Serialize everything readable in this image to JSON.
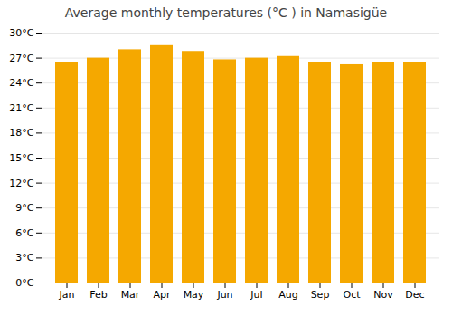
{
  "chart_data": {
    "type": "bar",
    "title": "Average monthly temperatures (°C ) in Namasigüe",
    "categories": [
      "Jan",
      "Feb",
      "Mar",
      "Apr",
      "May",
      "Jun",
      "Jul",
      "Aug",
      "Sep",
      "Oct",
      "Nov",
      "Dec"
    ],
    "values": [
      26.5,
      27.0,
      28.0,
      28.5,
      27.8,
      26.8,
      27.0,
      27.2,
      26.5,
      26.2,
      26.5,
      26.5
    ],
    "color": "#F5A800",
    "ylim": [
      0,
      30
    ],
    "yticks": [
      {
        "value": 0,
        "label": "0°C"
      },
      {
        "value": 3,
        "label": "3°C"
      },
      {
        "value": 6,
        "label": "6°C"
      },
      {
        "value": 9,
        "label": "9°C"
      },
      {
        "value": 12,
        "label": "12°C"
      },
      {
        "value": 15,
        "label": "15°C"
      },
      {
        "value": 18,
        "label": "18°C"
      },
      {
        "value": 21,
        "label": "21°C"
      },
      {
        "value": 24,
        "label": "24°C"
      },
      {
        "value": 27,
        "label": "27°C"
      },
      {
        "value": 30,
        "label": "30°C"
      }
    ],
    "grid": true
  }
}
